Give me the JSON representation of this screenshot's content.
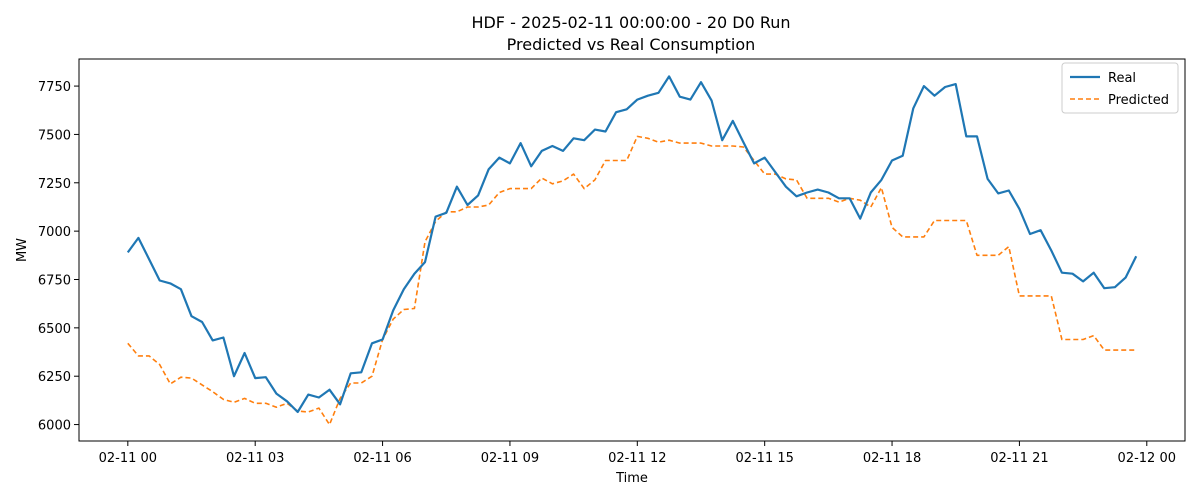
{
  "chart_data": {
    "type": "line",
    "title": "HDF - 2025-02-11 00:00:00 - 20 D0 Run",
    "subtitle": "Predicted vs Real Consumption",
    "xlabel": "Time",
    "ylabel": "MW",
    "x_unit": "hours since 2025-02-11 00:00",
    "xlim": [
      -1.15,
      24.9
    ],
    "ylim": [
      5915,
      7890
    ],
    "x_ticks": [
      {
        "value": 0,
        "label": "02-11 00"
      },
      {
        "value": 3,
        "label": "02-11 03"
      },
      {
        "value": 6,
        "label": "02-11 06"
      },
      {
        "value": 9,
        "label": "02-11 09"
      },
      {
        "value": 12,
        "label": "02-11 12"
      },
      {
        "value": 15,
        "label": "02-11 15"
      },
      {
        "value": 18,
        "label": "02-11 18"
      },
      {
        "value": 21,
        "label": "02-11 21"
      },
      {
        "value": 24,
        "label": "02-12 00"
      }
    ],
    "y_ticks": [
      {
        "value": 6000,
        "label": "6000"
      },
      {
        "value": 6250,
        "label": "6250"
      },
      {
        "value": 6500,
        "label": "6500"
      },
      {
        "value": 6750,
        "label": "6750"
      },
      {
        "value": 7000,
        "label": "7000"
      },
      {
        "value": 7250,
        "label": "7250"
      },
      {
        "value": 7500,
        "label": "7500"
      },
      {
        "value": 7750,
        "label": "7750"
      }
    ],
    "legend_position": "top-right",
    "colors": {
      "real": "#1f77b4",
      "predicted": "#ff7f0e"
    },
    "series": [
      {
        "name": "Real",
        "style": "solid",
        "x": [
          0,
          0.25,
          0.5,
          0.75,
          1,
          1.25,
          1.5,
          1.75,
          2,
          2.25,
          2.5,
          2.75,
          3,
          3.25,
          3.5,
          3.75,
          4,
          4.25,
          4.5,
          4.75,
          5,
          5.25,
          5.5,
          5.75,
          6,
          6.25,
          6.5,
          6.75,
          7,
          7.25,
          7.5,
          7.75,
          8,
          8.25,
          8.5,
          8.75,
          9,
          9.25,
          9.5,
          9.75,
          10,
          10.25,
          10.5,
          10.75,
          11,
          11.25,
          11.5,
          11.75,
          12,
          12.25,
          12.5,
          12.75,
          13,
          13.25,
          13.5,
          13.75,
          14,
          14.25,
          14.5,
          14.75,
          15,
          15.25,
          15.5,
          15.75,
          16,
          16.25,
          16.5,
          16.75,
          17,
          17.25,
          17.5,
          17.75,
          18,
          18.25,
          18.5,
          18.75,
          19,
          19.25,
          19.5,
          19.75,
          20,
          20.25,
          20.5,
          20.75,
          21,
          21.25,
          21.5,
          21.75,
          22,
          22.25,
          22.5,
          22.75,
          23,
          23.25,
          23.5,
          23.75
        ],
        "values": [
          6890,
          6965,
          6855,
          6745,
          6730,
          6700,
          6560,
          6530,
          6435,
          6450,
          6250,
          6370,
          6240,
          6245,
          6160,
          6120,
          6065,
          6155,
          6140,
          6180,
          6105,
          6265,
          6270,
          6420,
          6440,
          6590,
          6700,
          6780,
          6840,
          7075,
          7095,
          7230,
          7135,
          7185,
          7320,
          7380,
          7350,
          7455,
          7335,
          7415,
          7440,
          7415,
          7480,
          7470,
          7525,
          7515,
          7615,
          7630,
          7680,
          7700,
          7715,
          7800,
          7695,
          7680,
          7770,
          7675,
          7470,
          7570,
          7460,
          7350,
          7380,
          7305,
          7230,
          7180,
          7200,
          7215,
          7200,
          7170,
          7170,
          7065,
          7200,
          7265,
          7365,
          7390,
          7635,
          7750,
          7700,
          7745,
          7760,
          7490,
          7490,
          7270,
          7195,
          7210,
          7115,
          6985,
          7005,
          6900,
          6785,
          6780,
          6740,
          6785,
          6705,
          6710,
          6760,
          6870
        ]
      },
      {
        "name": "Predicted",
        "style": "dashed",
        "x": [
          0,
          0.25,
          0.5,
          0.75,
          1,
          1.25,
          1.5,
          1.75,
          2,
          2.25,
          2.5,
          2.75,
          3,
          3.25,
          3.5,
          3.75,
          4,
          4.25,
          4.5,
          4.75,
          5,
          5.25,
          5.5,
          5.75,
          6,
          6.25,
          6.5,
          6.75,
          7,
          7.25,
          7.5,
          7.75,
          8,
          8.25,
          8.5,
          8.75,
          9,
          9.25,
          9.5,
          9.75,
          10,
          10.25,
          10.5,
          10.75,
          11,
          11.25,
          11.5,
          11.75,
          12,
          12.25,
          12.5,
          12.75,
          13,
          13.25,
          13.5,
          13.75,
          14,
          14.25,
          14.5,
          14.75,
          15,
          15.25,
          15.5,
          15.75,
          16,
          16.25,
          16.5,
          16.75,
          17,
          17.25,
          17.5,
          17.75,
          18,
          18.25,
          18.5,
          18.75,
          19,
          19.25,
          19.5,
          19.75,
          20,
          20.25,
          20.5,
          20.75,
          21,
          21.25,
          21.5,
          21.75,
          22,
          22.25,
          22.5,
          22.75,
          23,
          23.25,
          23.5,
          23.75
        ],
        "values": [
          6420,
          6355,
          6355,
          6310,
          6210,
          6245,
          6240,
          6205,
          6170,
          6130,
          6115,
          6135,
          6110,
          6110,
          6090,
          6110,
          6070,
          6065,
          6085,
          6000,
          6135,
          6215,
          6215,
          6250,
          6440,
          6545,
          6595,
          6600,
          6945,
          7050,
          7100,
          7100,
          7125,
          7125,
          7135,
          7200,
          7220,
          7220,
          7220,
          7275,
          7245,
          7260,
          7295,
          7220,
          7265,
          7365,
          7365,
          7365,
          7490,
          7480,
          7460,
          7470,
          7455,
          7455,
          7455,
          7440,
          7440,
          7440,
          7435,
          7365,
          7295,
          7295,
          7270,
          7265,
          7170,
          7170,
          7170,
          7150,
          7170,
          7160,
          7125,
          7225,
          7020,
          6970,
          6970,
          6970,
          7055,
          7055,
          7055,
          7055,
          6875,
          6875,
          6875,
          6920,
          6665,
          6665,
          6665,
          6665,
          6440,
          6440,
          6440,
          6460,
          6385,
          6385,
          6385,
          6385
        ]
      }
    ]
  }
}
